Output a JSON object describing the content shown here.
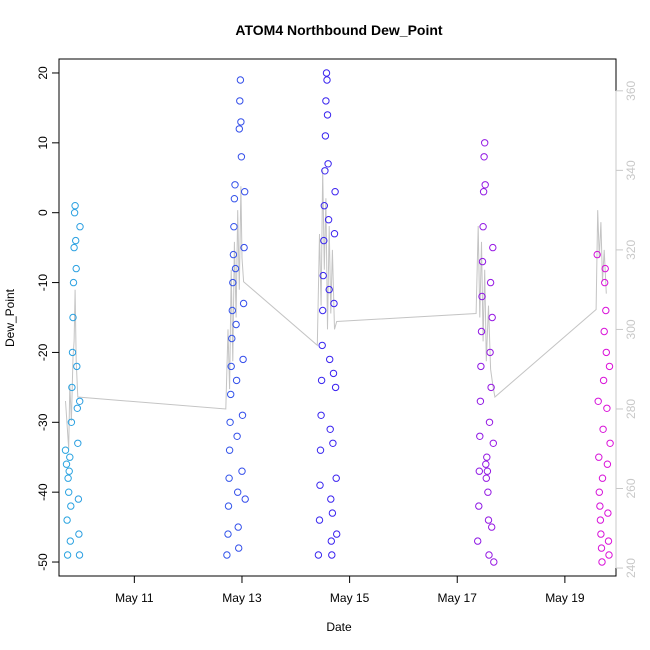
{
  "chart_data": {
    "type": "scatter",
    "title": "ATOM4 Northbound Dew_Point",
    "xlabel": "Date",
    "ylabel": "Dew_Point",
    "xlim": [
      9.6,
      19.95
    ],
    "ylim": [
      -52,
      22
    ],
    "y2lim": [
      238,
      368
    ],
    "x_ticks": [
      {
        "value": 11,
        "label": "May 11"
      },
      {
        "value": 13,
        "label": "May 13"
      },
      {
        "value": 15,
        "label": "May 15"
      },
      {
        "value": 17,
        "label": "May 17"
      },
      {
        "value": 19,
        "label": "May 19"
      }
    ],
    "y_ticks": [
      -50,
      -40,
      -30,
      -20,
      -10,
      0,
      10,
      20
    ],
    "y2_ticks": [
      240,
      260,
      280,
      300,
      320,
      340,
      360
    ],
    "grid": false,
    "legend": "none",
    "colors": {
      "points_start": "#29a8e0",
      "points_mid": "#3a1ff0",
      "points_end": "#e012d8",
      "line": "#c4c4c4"
    },
    "series": [
      {
        "points": [
          [
            9.72,
            -34
          ],
          [
            9.74,
            -36
          ],
          [
            9.75,
            -44
          ],
          [
            9.76,
            -49
          ],
          [
            9.77,
            -38
          ],
          [
            9.78,
            -40
          ],
          [
            9.79,
            -37
          ],
          [
            9.8,
            -35
          ],
          [
            9.81,
            -47
          ],
          [
            9.82,
            -42
          ],
          [
            9.83,
            -30
          ],
          [
            9.84,
            -25
          ],
          [
            9.85,
            -20
          ],
          [
            9.86,
            -15
          ],
          [
            9.87,
            -10
          ],
          [
            9.88,
            -5
          ],
          [
            9.89,
            0
          ],
          [
            9.9,
            1
          ],
          [
            9.91,
            -4
          ],
          [
            9.92,
            -8
          ],
          [
            9.93,
            -22
          ],
          [
            9.94,
            -28
          ],
          [
            9.95,
            -33
          ],
          [
            9.96,
            -41
          ],
          [
            9.97,
            -46
          ],
          [
            9.98,
            -49
          ],
          [
            9.985,
            -27
          ],
          [
            9.99,
            -2
          ]
        ]
      },
      {
        "points": [
          [
            12.72,
            -49
          ],
          [
            12.74,
            -46
          ],
          [
            12.75,
            -42
          ],
          [
            12.76,
            -38
          ],
          [
            12.77,
            -34
          ],
          [
            12.78,
            -30
          ],
          [
            12.79,
            -26
          ],
          [
            12.8,
            -22
          ],
          [
            12.81,
            -18
          ],
          [
            12.82,
            -14
          ],
          [
            12.83,
            -10
          ],
          [
            12.84,
            -6
          ],
          [
            12.85,
            -2
          ],
          [
            12.86,
            2
          ],
          [
            12.87,
            4
          ],
          [
            12.88,
            -8
          ],
          [
            12.89,
            -16
          ],
          [
            12.9,
            -24
          ],
          [
            12.91,
            -32
          ],
          [
            12.92,
            -40
          ],
          [
            12.93,
            -45
          ],
          [
            12.94,
            -48
          ],
          [
            12.95,
            12
          ],
          [
            12.96,
            16
          ],
          [
            12.97,
            19
          ],
          [
            12.98,
            13
          ],
          [
            12.99,
            8
          ],
          [
            13.0,
            -37
          ],
          [
            13.01,
            -29
          ],
          [
            13.02,
            -21
          ],
          [
            13.03,
            -13
          ],
          [
            13.04,
            -5
          ],
          [
            13.05,
            3
          ],
          [
            13.06,
            -41
          ]
        ]
      },
      {
        "points": [
          [
            14.42,
            -49
          ],
          [
            14.44,
            -44
          ],
          [
            14.45,
            -39
          ],
          [
            14.46,
            -34
          ],
          [
            14.47,
            -29
          ],
          [
            14.48,
            -24
          ],
          [
            14.49,
            -19
          ],
          [
            14.5,
            -14
          ],
          [
            14.51,
            -9
          ],
          [
            14.52,
            -4
          ],
          [
            14.53,
            1
          ],
          [
            14.54,
            6
          ],
          [
            14.55,
            11
          ],
          [
            14.56,
            16
          ],
          [
            14.57,
            20
          ],
          [
            14.58,
            19
          ],
          [
            14.59,
            14
          ],
          [
            14.6,
            7
          ],
          [
            14.61,
            -1
          ],
          [
            14.62,
            -11
          ],
          [
            14.63,
            -21
          ],
          [
            14.64,
            -31
          ],
          [
            14.65,
            -41
          ],
          [
            14.66,
            -47
          ],
          [
            14.67,
            -49
          ],
          [
            14.68,
            -43
          ],
          [
            14.69,
            -33
          ],
          [
            14.7,
            -23
          ],
          [
            14.71,
            -13
          ],
          [
            14.72,
            -3
          ],
          [
            14.73,
            3
          ],
          [
            14.74,
            -25
          ],
          [
            14.75,
            -38
          ],
          [
            14.76,
            -46
          ]
        ]
      },
      {
        "points": [
          [
            17.38,
            -47
          ],
          [
            17.4,
            -42
          ],
          [
            17.41,
            -37
          ],
          [
            17.42,
            -32
          ],
          [
            17.43,
            -27
          ],
          [
            17.44,
            -22
          ],
          [
            17.45,
            -17
          ],
          [
            17.46,
            -12
          ],
          [
            17.47,
            -7
          ],
          [
            17.48,
            -2
          ],
          [
            17.49,
            3
          ],
          [
            17.5,
            8
          ],
          [
            17.51,
            10
          ],
          [
            17.52,
            4
          ],
          [
            17.53,
            -36
          ],
          [
            17.54,
            -38
          ],
          [
            17.55,
            -35
          ],
          [
            17.56,
            -37
          ],
          [
            17.57,
            -40
          ],
          [
            17.58,
            -44
          ],
          [
            17.59,
            -49
          ],
          [
            17.6,
            -30
          ],
          [
            17.61,
            -20
          ],
          [
            17.62,
            -10
          ],
          [
            17.63,
            -25
          ],
          [
            17.64,
            -45
          ],
          [
            17.65,
            -15
          ],
          [
            17.66,
            -5
          ],
          [
            17.67,
            -33
          ],
          [
            17.68,
            -50
          ]
        ]
      },
      {
        "points": [
          [
            19.6,
            -6
          ],
          [
            19.62,
            -27
          ],
          [
            19.63,
            -35
          ],
          [
            19.64,
            -40
          ],
          [
            19.65,
            -42
          ],
          [
            19.66,
            -44
          ],
          [
            19.67,
            -46
          ],
          [
            19.68,
            -48
          ],
          [
            19.69,
            -50
          ],
          [
            19.7,
            -38
          ],
          [
            19.71,
            -31
          ],
          [
            19.72,
            -24
          ],
          [
            19.73,
            -17
          ],
          [
            19.74,
            -10
          ],
          [
            19.75,
            -8
          ],
          [
            19.76,
            -14
          ],
          [
            19.77,
            -20
          ],
          [
            19.78,
            -28
          ],
          [
            19.79,
            -36
          ],
          [
            19.8,
            -43
          ],
          [
            19.81,
            -47
          ],
          [
            19.82,
            -49
          ],
          [
            19.83,
            -22
          ],
          [
            19.84,
            -33
          ]
        ]
      }
    ],
    "secondary_line": [
      [
        9.72,
        282
      ],
      [
        9.75,
        276
      ],
      [
        9.78,
        270
      ],
      [
        9.8,
        286
      ],
      [
        9.83,
        277
      ],
      [
        9.86,
        293
      ],
      [
        9.88,
        297
      ],
      [
        9.9,
        310
      ],
      [
        9.92,
        292
      ],
      [
        9.95,
        283
      ],
      [
        12.7,
        280
      ],
      [
        12.74,
        300
      ],
      [
        12.77,
        285
      ],
      [
        12.8,
        315
      ],
      [
        12.83,
        292
      ],
      [
        12.86,
        322
      ],
      [
        12.89,
        303
      ],
      [
        12.92,
        330
      ],
      [
        12.95,
        310
      ],
      [
        12.98,
        336
      ],
      [
        13.0,
        318
      ],
      [
        13.03,
        312
      ],
      [
        14.4,
        296
      ],
      [
        14.44,
        324
      ],
      [
        14.47,
        306
      ],
      [
        14.5,
        340
      ],
      [
        14.53,
        315
      ],
      [
        14.56,
        333
      ],
      [
        14.59,
        300
      ],
      [
        14.62,
        326
      ],
      [
        14.65,
        304
      ],
      [
        14.68,
        320
      ],
      [
        14.72,
        300
      ],
      [
        14.76,
        302
      ],
      [
        17.35,
        304
      ],
      [
        17.39,
        326
      ],
      [
        17.42,
        303
      ],
      [
        17.45,
        322
      ],
      [
        17.48,
        297
      ],
      [
        17.51,
        315
      ],
      [
        17.54,
        292
      ],
      [
        17.58,
        306
      ],
      [
        17.62,
        290
      ],
      [
        17.66,
        286
      ],
      [
        17.7,
        283
      ],
      [
        19.58,
        305
      ],
      [
        19.61,
        330
      ],
      [
        19.64,
        318
      ],
      [
        19.67,
        327
      ],
      [
        19.7,
        312
      ],
      [
        19.73,
        320
      ],
      [
        19.77,
        309
      ]
    ]
  }
}
